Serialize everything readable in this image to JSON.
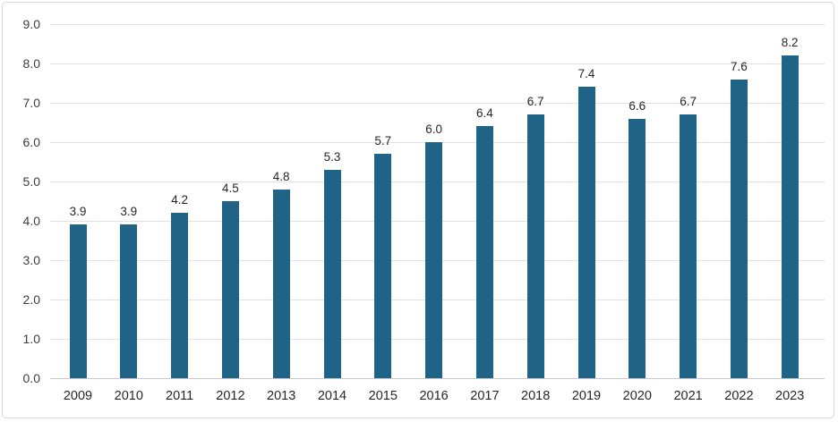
{
  "chart_data": {
    "type": "bar",
    "categories": [
      "2009",
      "2010",
      "2011",
      "2012",
      "2013",
      "2014",
      "2015",
      "2016",
      "2017",
      "2018",
      "2019",
      "2020",
      "2021",
      "2022",
      "2023"
    ],
    "values": [
      3.9,
      3.9,
      4.2,
      4.5,
      4.8,
      5.3,
      5.7,
      6.0,
      6.4,
      6.7,
      7.4,
      6.6,
      6.7,
      7.6,
      8.2
    ],
    "value_labels": [
      "3.9",
      "3.9",
      "4.2",
      "4.5",
      "4.8",
      "5.3",
      "5.7",
      "6.0",
      "6.4",
      "6.7",
      "7.4",
      "6.6",
      "6.7",
      "7.6",
      "8.2"
    ],
    "title": "",
    "xlabel": "",
    "ylabel": "",
    "ylim": [
      0,
      9
    ],
    "ytick_step": 1,
    "ytick_labels": [
      "0.0",
      "1.0",
      "2.0",
      "3.0",
      "4.0",
      "5.0",
      "6.0",
      "7.0",
      "8.0",
      "9.0"
    ],
    "grid": true,
    "legend": "none",
    "colors": {
      "bar": "#1f6386",
      "gridline": "#e2e2e2",
      "axis_line": "#c9c9c9",
      "value_label_text": "#262626",
      "tick_text": "#3d3d3d",
      "card_border": "#d7d7d7",
      "background": "#ffffff"
    }
  }
}
